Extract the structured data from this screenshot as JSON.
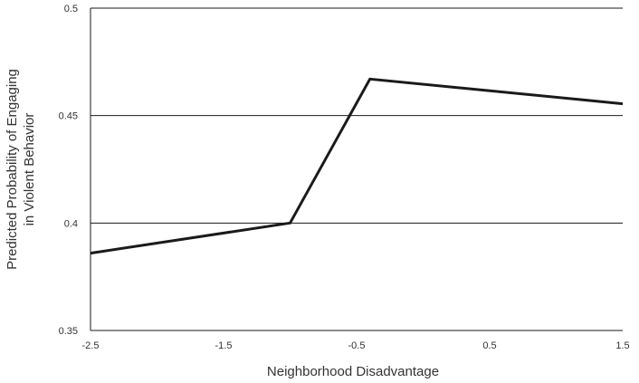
{
  "chart_data": {
    "type": "line",
    "title": "",
    "xlabel": "Neighborhood Disadvantage",
    "ylabel_lines": [
      "Predicted Probability of Engaging",
      "in Violent Behavior"
    ],
    "xlim": [
      -2.5,
      1.5
    ],
    "ylim": [
      0.35,
      0.5
    ],
    "x_ticks": [
      {
        "value": -2.5,
        "label": "-2.5"
      },
      {
        "value": -1.5,
        "label": "-1.5"
      },
      {
        "value": -0.5,
        "label": "-0.5"
      },
      {
        "value": 0.5,
        "label": "0.5"
      },
      {
        "value": 1.5,
        "label": "1.5"
      }
    ],
    "y_ticks": [
      {
        "value": 0.35,
        "label": "0.35"
      },
      {
        "value": 0.4,
        "label": "0.4"
      },
      {
        "value": 0.45,
        "label": "0.45"
      },
      {
        "value": 0.5,
        "label": "0.5"
      }
    ],
    "grid": "horizontal",
    "legend": "none",
    "series": [
      {
        "x": [
          -2.5,
          -1.0,
          -0.4,
          1.5
        ],
        "y": [
          0.386,
          0.4,
          0.467,
          0.4555
        ],
        "color": "#1a1a1a"
      }
    ]
  }
}
